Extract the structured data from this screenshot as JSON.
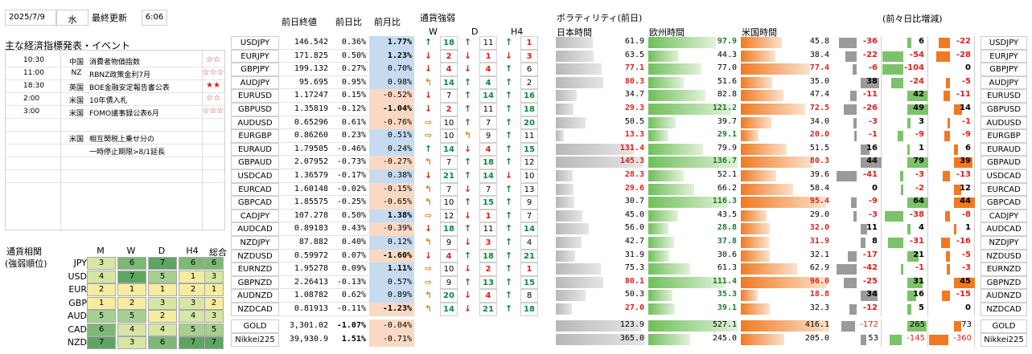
{
  "header": {
    "date": "2025/7/9",
    "weekday": "水",
    "updated_label": "最終更新",
    "time": "6:06"
  },
  "events": {
    "title": "主な経済指標発表・イベント",
    "rows": [
      {
        "time": "10:30",
        "country": "中国",
        "name": "消費者物価指数",
        "stars": "☆☆",
        "starColor": "#e0201c"
      },
      {
        "time": "11:00",
        "country": "NZ",
        "name": "RBNZ政策金利7月",
        "stars": "☆☆☆",
        "starColor": "#e0201c"
      },
      {
        "time": "18:30",
        "country": "英国",
        "name": "BOE金融安定報告書公表",
        "stars": "★★",
        "starColor": "#e0201c"
      },
      {
        "time": "2:00",
        "country": "米国",
        "name": "10年債入札",
        "stars": "☆☆",
        "starColor": "#e0201c"
      },
      {
        "time": "3:00",
        "country": "米国",
        "name": "FOMO議事録公表6月",
        "stars": "☆☆☆",
        "starColor": "#e0201c"
      },
      {
        "time": "",
        "country": "",
        "name": "",
        "stars": ""
      },
      {
        "time": "",
        "country": "米国",
        "name": "相互関税上乗せ分の",
        "stars": ""
      },
      {
        "time": "",
        "country": "",
        "name": "一時停止期限>8/1延長",
        "stars": ""
      },
      {
        "time": "",
        "country": "",
        "name": "",
        "stars": ""
      },
      {
        "time": "",
        "country": "",
        "name": "",
        "stars": ""
      }
    ]
  },
  "corr": {
    "title1": "通貨相関",
    "title2": "(強弱順位)",
    "cols": [
      "M",
      "W",
      "D",
      "H4",
      "総合"
    ],
    "rows": [
      {
        "cur": "JPY",
        "vals": [
          "3",
          "6",
          "7",
          "6",
          "6"
        ]
      },
      {
        "cur": "USD",
        "vals": [
          "4",
          "7",
          "5",
          "1",
          "3"
        ]
      },
      {
        "cur": "EUR",
        "vals": [
          "2",
          "1",
          "1",
          "2",
          "1"
        ]
      },
      {
        "cur": "GBP",
        "vals": [
          "1",
          "2",
          "3",
          "3",
          "2"
        ]
      },
      {
        "cur": "AUD",
        "vals": [
          "5",
          "5",
          "2",
          "4",
          "3"
        ]
      },
      {
        "cur": "CAD",
        "vals": [
          "6",
          "4",
          "4",
          "5",
          "5"
        ]
      },
      {
        "cur": "NZD",
        "vals": [
          "7",
          "3",
          "6",
          "7",
          "7"
        ]
      }
    ]
  },
  "quotes": {
    "h_close": "前日終値",
    "h_dd": "前日比",
    "h_dm": "前月比",
    "h_strength": "通貨強弱",
    "h_w": "W",
    "h_d": "D",
    "h_h4": "H4",
    "h_vol": "ボラティリティ(前日)",
    "h_jp": "日本時間",
    "h_eu": "欧州時間",
    "h_us": "米国時間",
    "h_diff": "(前々日比増減)"
  },
  "pairs": [
    {
      "sym": "USDJPY",
      "close": "146.542",
      "dd": "0.36%",
      "dm": "1.77%",
      "dmb": 1,
      "s": [
        [
          "up",
          "18"
        ],
        [
          "up",
          "11"
        ],
        [
          "up",
          "1"
        ]
      ],
      "sc": [
        "g",
        "n",
        "r"
      ],
      "jp": "61.9",
      "jpb": 0,
      "eu": "97.9",
      "eub": 1,
      "us": "45.8",
      "usb": 0,
      "d": [
        "-36",
        "6",
        "-22"
      ],
      "db": [
        0,
        0,
        0
      ]
    },
    {
      "sym": "EURJPY",
      "close": "171.825",
      "dd": "0.50%",
      "dm": "1.23%",
      "dmb": 1,
      "s": [
        [
          "dn",
          "2"
        ],
        [
          "dn",
          "1"
        ],
        [
          "dn",
          "3"
        ]
      ],
      "sc": [
        "r",
        "r",
        "r"
      ],
      "jp": "63.5",
      "jpb": 0,
      "eu": "44.3",
      "eub": 0,
      "us": "38.4",
      "usb": 0,
      "d": [
        "-22",
        "-54",
        "-28"
      ],
      "db": [
        0,
        1,
        1
      ]
    },
    {
      "sym": "GBPJPY",
      "close": "199.132",
      "dd": "0.27%",
      "dm": "0.70%",
      "dmb": 0,
      "s": [
        [
          "dn",
          "4"
        ],
        [
          "dn",
          "4"
        ],
        [
          "up",
          "6"
        ]
      ],
      "sc": [
        "r",
        "r",
        "n"
      ],
      "jp": "77.1",
      "jpb": 1,
      "eu": "77.0",
      "eub": 0,
      "us": "77.4",
      "usb": 1,
      "d": [
        "-6",
        "-104",
        "0"
      ],
      "db": [
        0,
        1,
        0
      ]
    },
    {
      "sym": "AUDJPY",
      "close": "95.695",
      "dd": "0.95%",
      "dm": "0.98%",
      "dmb": 0,
      "s": [
        [
          "ul",
          "14"
        ],
        [
          "up",
          "4"
        ],
        [
          "up",
          "2"
        ]
      ],
      "sc": [
        "g",
        "g",
        "n"
      ],
      "jp": "80.3",
      "jpb": 1,
      "eu": "51.6",
      "eub": 0,
      "us": "35.0",
      "usb": 0,
      "d": [
        "38",
        "-24",
        "-5"
      ],
      "db": [
        1,
        0,
        0
      ]
    },
    {
      "sym": "EURUSD",
      "close": "1.17247",
      "dd": "0.15%",
      "dm": "-0.52%",
      "dmb": 0,
      "s": [
        [
          "dn",
          "7"
        ],
        [
          "up",
          "14"
        ],
        [
          "up",
          "16"
        ]
      ],
      "sc": [
        "n",
        "g",
        "g"
      ],
      "jp": "34.7",
      "jpb": 0,
      "eu": "82.8",
      "eub": 0,
      "us": "47.4",
      "usb": 0,
      "d": [
        "-11",
        "42",
        "-11"
      ],
      "db": [
        0,
        0,
        0
      ]
    },
    {
      "sym": "GBPUSD",
      "close": "1.35819",
      "dd": "-0.12%",
      "dm": "-1.04%",
      "dmb": 1,
      "s": [
        [
          "dn",
          "2"
        ],
        [
          "up",
          "11"
        ],
        [
          "up",
          "18"
        ]
      ],
      "sc": [
        "r",
        "n",
        "g"
      ],
      "jp": "29.3",
      "jpb": 1,
      "eu": "121.2",
      "eub": 1,
      "us": "72.5",
      "usb": 1,
      "d": [
        "-26",
        "49",
        "14"
      ],
      "db": [
        0,
        1,
        0
      ]
    },
    {
      "sym": "AUDUSD",
      "close": "0.65296",
      "dd": "0.61%",
      "dm": "-0.76%",
      "dmb": 0,
      "s": [
        [
          "ri",
          "10"
        ],
        [
          "up",
          "7"
        ],
        [
          "up",
          "20"
        ]
      ],
      "sc": [
        "n",
        "n",
        "g"
      ],
      "jp": "50.5",
      "jpb": 0,
      "eu": "39.7",
      "eub": 0,
      "us": "34.0",
      "usb": 0,
      "d": [
        "-3",
        "3",
        "-1"
      ],
      "db": [
        0,
        0,
        0
      ]
    },
    {
      "sym": "EURGBP",
      "close": "0.86260",
      "dd": "0.23%",
      "dm": "0.51%",
      "dmb": 0,
      "s": [
        [
          "ri",
          "10"
        ],
        [
          "ul",
          "9"
        ],
        [
          "up",
          "11"
        ]
      ],
      "sc": [
        "n",
        "n",
        "n"
      ],
      "jp": "13.3",
      "jpb": 1,
      "eu": "29.1",
      "eub": 1,
      "us": "20.0",
      "usb": 1,
      "d": [
        "-1",
        "-9",
        "-9"
      ],
      "db": [
        0,
        0,
        0
      ]
    },
    {
      "sym": "EURAUD",
      "close": "1.79505",
      "dd": "-0.46%",
      "dm": "0.24%",
      "dmb": 0,
      "s": [
        [
          "up",
          "14"
        ],
        [
          "dn",
          "4"
        ],
        [
          "up",
          "15"
        ]
      ],
      "sc": [
        "g",
        "r",
        "g"
      ],
      "jp": "131.4",
      "jpb": 1,
      "eu": "79.9",
      "eub": 0,
      "us": "51.5",
      "usb": 0,
      "d": [
        "16",
        "1",
        "6"
      ],
      "db": [
        0,
        0,
        0
      ]
    },
    {
      "sym": "GBPAUD",
      "close": "2.07952",
      "dd": "-0.73%",
      "dm": "-0.27%",
      "dmb": 0,
      "s": [
        [
          "ul",
          "7"
        ],
        [
          "up",
          "18"
        ],
        [
          "up",
          "12"
        ]
      ],
      "sc": [
        "n",
        "g",
        "n"
      ],
      "jp": "145.3",
      "jpb": 1,
      "eu": "136.7",
      "eub": 1,
      "us": "80.3",
      "usb": 1,
      "d": [
        "44",
        "79",
        "39"
      ],
      "db": [
        1,
        1,
        1
      ]
    },
    {
      "sym": "USDCAD",
      "close": "1.36579",
      "dd": "-0.17%",
      "dm": "0.38%",
      "dmb": 0,
      "s": [
        [
          "dn",
          "21"
        ],
        [
          "up",
          "14"
        ],
        [
          "dn",
          "10"
        ]
      ],
      "sc": [
        "g",
        "g",
        "n"
      ],
      "jp": "28.3",
      "jpb": 1,
      "eu": "52.1",
      "eub": 0,
      "us": "39.6",
      "usb": 0,
      "d": [
        "-41",
        "-3",
        "-13"
      ],
      "db": [
        0,
        0,
        0
      ]
    },
    {
      "sym": "EURCAD",
      "close": "1.60148",
      "dd": "-0.02%",
      "dm": "-0.15%",
      "dmb": 0,
      "s": [
        [
          "ul",
          "7"
        ],
        [
          "dn",
          "7"
        ],
        [
          "up",
          "13"
        ]
      ],
      "sc": [
        "n",
        "n",
        "n"
      ],
      "jp": "29.6",
      "jpb": 1,
      "eu": "66.2",
      "eub": 0,
      "us": "58.4",
      "usb": 0,
      "d": [
        "0",
        "-2",
        "12"
      ],
      "db": [
        0,
        0,
        0
      ]
    },
    {
      "sym": "GBPCAD",
      "close": "1.85575",
      "dd": "-0.25%",
      "dm": "-0.65%",
      "dmb": 0,
      "s": [
        [
          "ul",
          "10"
        ],
        [
          "up",
          "15"
        ],
        [
          "up",
          "9"
        ]
      ],
      "sc": [
        "n",
        "g",
        "n"
      ],
      "jp": "30.7",
      "jpb": 0,
      "eu": "116.3",
      "eub": 1,
      "us": "95.4",
      "usb": 1,
      "d": [
        "-9",
        "64",
        "44"
      ],
      "db": [
        0,
        1,
        1
      ]
    },
    {
      "sym": "CADJPY",
      "close": "107.278",
      "dd": "0.50%",
      "dm": "1.38%",
      "dmb": 1,
      "s": [
        [
          "ri",
          "12"
        ],
        [
          "dn",
          "1"
        ],
        [
          "up",
          "7"
        ]
      ],
      "sc": [
        "n",
        "r",
        "n"
      ],
      "jp": "45.0",
      "jpb": 0,
      "eu": "43.5",
      "eub": 0,
      "us": "29.0",
      "usb": 0,
      "d": [
        "-3",
        "-38",
        "-8"
      ],
      "db": [
        0,
        1,
        0
      ]
    },
    {
      "sym": "AUDCAD",
      "close": "0.89183",
      "dd": "0.43%",
      "dm": "-0.39%",
      "dmb": 0,
      "s": [
        [
          "dn",
          "18"
        ],
        [
          "up",
          "11"
        ],
        [
          "up",
          "14"
        ]
      ],
      "sc": [
        "g",
        "n",
        "g"
      ],
      "jp": "56.0",
      "jpb": 0,
      "eu": "28.8",
      "eub": 1,
      "us": "32.0",
      "usb": 1,
      "d": [
        "11",
        "4",
        "1"
      ],
      "db": [
        0,
        0,
        0
      ]
    },
    {
      "sym": "NZDJPY",
      "close": "87.882",
      "dd": "0.40%",
      "dm": "0.12%",
      "dmb": 0,
      "s": [
        [
          "ul",
          "9"
        ],
        [
          "dn",
          "3"
        ],
        [
          "up",
          "4"
        ]
      ],
      "sc": [
        "n",
        "r",
        "n"
      ],
      "jp": "42.7",
      "jpb": 0,
      "eu": "37.8",
      "eub": 1,
      "us": "31.9",
      "usb": 1,
      "d": [
        "8",
        "-31",
        "-16"
      ],
      "db": [
        0,
        1,
        0
      ]
    },
    {
      "sym": "NZDUSD",
      "close": "0.59972",
      "dd": "0.07%",
      "dm": "-1.60%",
      "dmb": 1,
      "s": [
        [
          "dn",
          "4"
        ],
        [
          "up",
          "18"
        ],
        [
          "up",
          "21"
        ]
      ],
      "sc": [
        "r",
        "g",
        "g"
      ],
      "jp": "31.9",
      "jpb": 0,
      "eu": "30.6",
      "eub": 0,
      "us": "32.1",
      "usb": 0,
      "d": [
        "-17",
        "21",
        "-5"
      ],
      "db": [
        0,
        0,
        0
      ]
    },
    {
      "sym": "EURNZD",
      "close": "1.95278",
      "dd": "0.09%",
      "dm": "1.11%",
      "dmb": 1,
      "s": [
        [
          "ri",
          "10"
        ],
        [
          "dn",
          "2"
        ],
        [
          "up",
          "1"
        ]
      ],
      "sc": [
        "n",
        "r",
        "r"
      ],
      "jp": "75.3",
      "jpb": 0,
      "eu": "61.3",
      "eub": 0,
      "us": "62.9",
      "usb": 0,
      "d": [
        "-42",
        "-1",
        "-3"
      ],
      "db": [
        0,
        0,
        0
      ]
    },
    {
      "sym": "GBPNZD",
      "close": "2.26413",
      "dd": "-0.13%",
      "dm": "0.57%",
      "dmb": 0,
      "s": [
        [
          "ri",
          "9"
        ],
        [
          "up",
          "13"
        ],
        [
          "up",
          "15"
        ]
      ],
      "sc": [
        "n",
        "g",
        "g"
      ],
      "jp": "80.1",
      "jpb": 1,
      "eu": "111.4",
      "eub": 1,
      "us": "96.0",
      "usb": 1,
      "d": [
        "-25",
        "31",
        "45"
      ],
      "db": [
        0,
        1,
        1
      ]
    },
    {
      "sym": "AUDNZD",
      "close": "1.08782",
      "dd": "0.62%",
      "dm": "0.89%",
      "dmb": 0,
      "s": [
        [
          "ul",
          "20"
        ],
        [
          "dn",
          "4"
        ],
        [
          "up",
          "8"
        ]
      ],
      "sc": [
        "g",
        "r",
        "n"
      ],
      "jp": "50.3",
      "jpb": 0,
      "eu": "35.3",
      "eub": 1,
      "us": "18.8",
      "usb": 1,
      "d": [
        "34",
        "16",
        "-15"
      ],
      "db": [
        1,
        0,
        0
      ]
    },
    {
      "sym": "NZDCAD",
      "close": "0.81913",
      "dd": "-0.11%",
      "dm": "-1.23%",
      "dmb": 1,
      "s": [
        [
          "ul",
          "14"
        ],
        [
          "dn",
          "21"
        ],
        [
          "up",
          "18"
        ]
      ],
      "sc": [
        "g",
        "g",
        "g"
      ],
      "jp": "27.0",
      "jpb": 1,
      "eu": "39.1",
      "eub": 1,
      "us": "32.3",
      "usb": 0,
      "d": [
        "-12",
        "5",
        "0"
      ],
      "db": [
        0,
        0,
        0
      ]
    }
  ],
  "commod": [
    {
      "sym": "GOLD",
      "close": "3,301.02",
      "dd": "-1.07%",
      "dm": "-0.04%",
      "jp": "123.9",
      "eu": "527.1",
      "us": "416.1",
      "d": [
        "-172",
        "265",
        "73"
      ]
    },
    {
      "sym": "Nikkei225",
      "close": "39,930.9",
      "dd": "1.51%",
      "dm": "-0.71%",
      "jp": "365.0",
      "eu": "245.0",
      "us": "205.0",
      "d": [
        "53",
        "-145",
        "-360"
      ]
    }
  ]
}
